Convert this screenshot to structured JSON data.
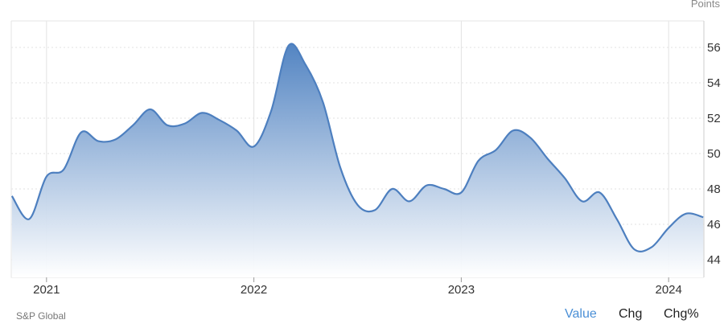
{
  "unit_label": "Points",
  "footer": {
    "source": "S&P Global",
    "tabs": [
      {
        "label": "Value",
        "active": true
      },
      {
        "label": "Chg",
        "active": false
      },
      {
        "label": "Chg%",
        "active": false
      }
    ]
  },
  "colors": {
    "line": "#4d7fbf",
    "fill_top": "#4a7ebf",
    "fill_bottom": "#ffffff",
    "grid": "#e2e2e2",
    "active_tab": "#4a8fd6"
  },
  "chart_data": {
    "type": "area",
    "title": "",
    "xlabel": "",
    "ylabel": "Points",
    "xlim": [
      2020.83,
      2024.17
    ],
    "ylim": [
      43,
      57.5
    ],
    "y_ticks": [
      44,
      46,
      48,
      50,
      52,
      54,
      56
    ],
    "x_ticks": [
      {
        "value": 2021,
        "label": "2021"
      },
      {
        "value": 2022,
        "label": "2022"
      },
      {
        "value": 2023,
        "label": "2023"
      },
      {
        "value": 2024,
        "label": "2024"
      }
    ],
    "y_axis_position": "right",
    "grid": true,
    "series": [
      {
        "points": [
          [
            2020.833,
            47.6
          ],
          [
            2020.917,
            46.3
          ],
          [
            2021.0,
            48.7
          ],
          [
            2021.083,
            49.1
          ],
          [
            2021.167,
            51.2
          ],
          [
            2021.25,
            50.7
          ],
          [
            2021.333,
            50.8
          ],
          [
            2021.417,
            51.6
          ],
          [
            2021.5,
            52.5
          ],
          [
            2021.583,
            51.6
          ],
          [
            2021.667,
            51.7
          ],
          [
            2021.75,
            52.3
          ],
          [
            2021.833,
            51.9
          ],
          [
            2021.917,
            51.3
          ],
          [
            2022.0,
            50.4
          ],
          [
            2022.083,
            52.4
          ],
          [
            2022.167,
            56.1
          ],
          [
            2022.25,
            55.0
          ],
          [
            2022.333,
            52.9
          ],
          [
            2022.417,
            49.2
          ],
          [
            2022.5,
            47.1
          ],
          [
            2022.583,
            46.8
          ],
          [
            2022.667,
            48.0
          ],
          [
            2022.75,
            47.3
          ],
          [
            2022.833,
            48.2
          ],
          [
            2022.917,
            48.0
          ],
          [
            2023.0,
            47.8
          ],
          [
            2023.083,
            49.6
          ],
          [
            2023.167,
            50.2
          ],
          [
            2023.25,
            51.3
          ],
          [
            2023.333,
            50.9
          ],
          [
            2023.417,
            49.7
          ],
          [
            2023.5,
            48.6
          ],
          [
            2023.583,
            47.3
          ],
          [
            2023.667,
            47.8
          ],
          [
            2023.75,
            46.3
          ],
          [
            2023.833,
            44.6
          ],
          [
            2023.917,
            44.7
          ],
          [
            2024.0,
            45.8
          ],
          [
            2024.083,
            46.6
          ],
          [
            2024.167,
            46.4
          ]
        ]
      }
    ]
  }
}
